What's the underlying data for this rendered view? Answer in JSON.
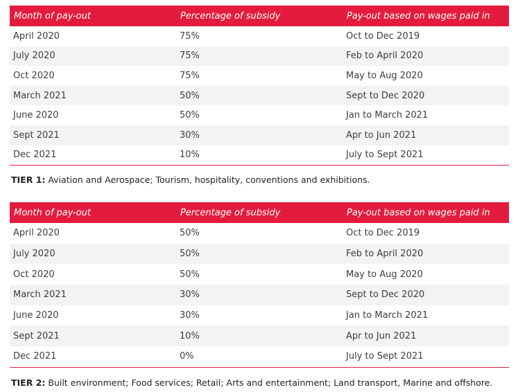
{
  "tables": [
    {
      "headers": [
        "Month of pay-out",
        "Percentage of subsidy",
        "Pay-out based on wages paid in"
      ],
      "rows": [
        [
          "April 2020",
          "75%",
          "Oct to Dec 2019"
        ],
        [
          "July 2020",
          "75%",
          "Feb to April 2020"
        ],
        [
          "Oct 2020",
          "75%",
          "May to Aug 2020"
        ],
        [
          "March 2021",
          "50%",
          "Sept to Dec 2020"
        ],
        [
          "June 2020",
          "50%",
          "Jan to March 2021"
        ],
        [
          "Sept 2021",
          "30%",
          "Apr to Jun 2021"
        ],
        [
          "Dec 2021",
          "10%",
          "July to Sept 2021"
        ]
      ],
      "note_label": "TIER 1:",
      "note_text": " Aviation and Aerospace; Tourism, hospitality, conventions and exhibitions."
    },
    {
      "headers": [
        "Month of pay-out",
        "Percentage of subsidy",
        "Pay-out based on wages paid in"
      ],
      "rows": [
        [
          "April 2020",
          "50%",
          "Oct to Dec 2019"
        ],
        [
          "July 2020",
          "50%",
          "Feb to April 2020"
        ],
        [
          "Oct 2020",
          "50%",
          "May to Aug 2020"
        ],
        [
          "March 2021",
          "30%",
          "Sept to Dec 2020"
        ],
        [
          "June 2020",
          "30%",
          "Jan to March 2021"
        ],
        [
          "Sept 2021",
          "10%",
          "Apr to Jun 2021"
        ],
        [
          "Dec 2021",
          "0%",
          "July to Sept 2021"
        ]
      ],
      "note_label": "TIER 2:",
      "note_text": " Built environment; Food services; Retail; Arts and entertainment; Land transport, Marine and offshore."
    }
  ],
  "colors": {
    "header_bg": "#e31c3d",
    "row_alt_bg": "#f3f3f3",
    "text": "#3d3d3d"
  }
}
